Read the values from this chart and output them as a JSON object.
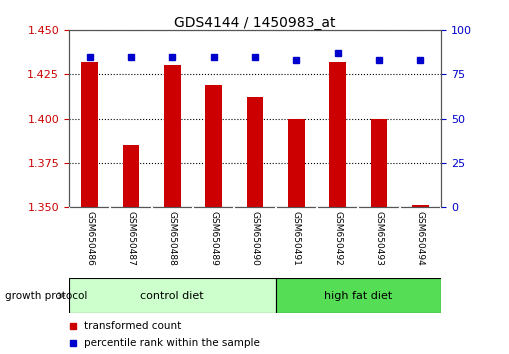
{
  "title": "GDS4144 / 1450983_at",
  "samples": [
    "GSM650486",
    "GSM650487",
    "GSM650488",
    "GSM650489",
    "GSM650490",
    "GSM650491",
    "GSM650492",
    "GSM650493",
    "GSM650494"
  ],
  "transformed_count": [
    1.432,
    1.385,
    1.43,
    1.419,
    1.412,
    1.4,
    1.432,
    1.4,
    1.351
  ],
  "percentile_rank": [
    85,
    85,
    85,
    85,
    85,
    83,
    87,
    83,
    83
  ],
  "ylim_left": [
    1.35,
    1.45
  ],
  "ylim_right": [
    0,
    100
  ],
  "yticks_left": [
    1.35,
    1.375,
    1.4,
    1.425,
    1.45
  ],
  "yticks_right": [
    0,
    25,
    50,
    75,
    100
  ],
  "bar_color": "#cc0000",
  "dot_color": "#0000cc",
  "bar_width": 0.4,
  "control_diet_indices": [
    0,
    1,
    2,
    3,
    4
  ],
  "high_fat_indices": [
    5,
    6,
    7,
    8
  ],
  "control_label": "control diet",
  "high_fat_label": "high fat diet",
  "growth_protocol_label": "growth protocol",
  "legend_bar_label": "transformed count",
  "legend_dot_label": "percentile rank within the sample",
  "control_color": "#ccffcc",
  "high_fat_color": "#55dd55",
  "ylabel_left_color": "#cc0000",
  "ylabel_right_color": "#0000cc",
  "background_color": "#ffffff",
  "tick_label_area_color": "#c0c0c0"
}
